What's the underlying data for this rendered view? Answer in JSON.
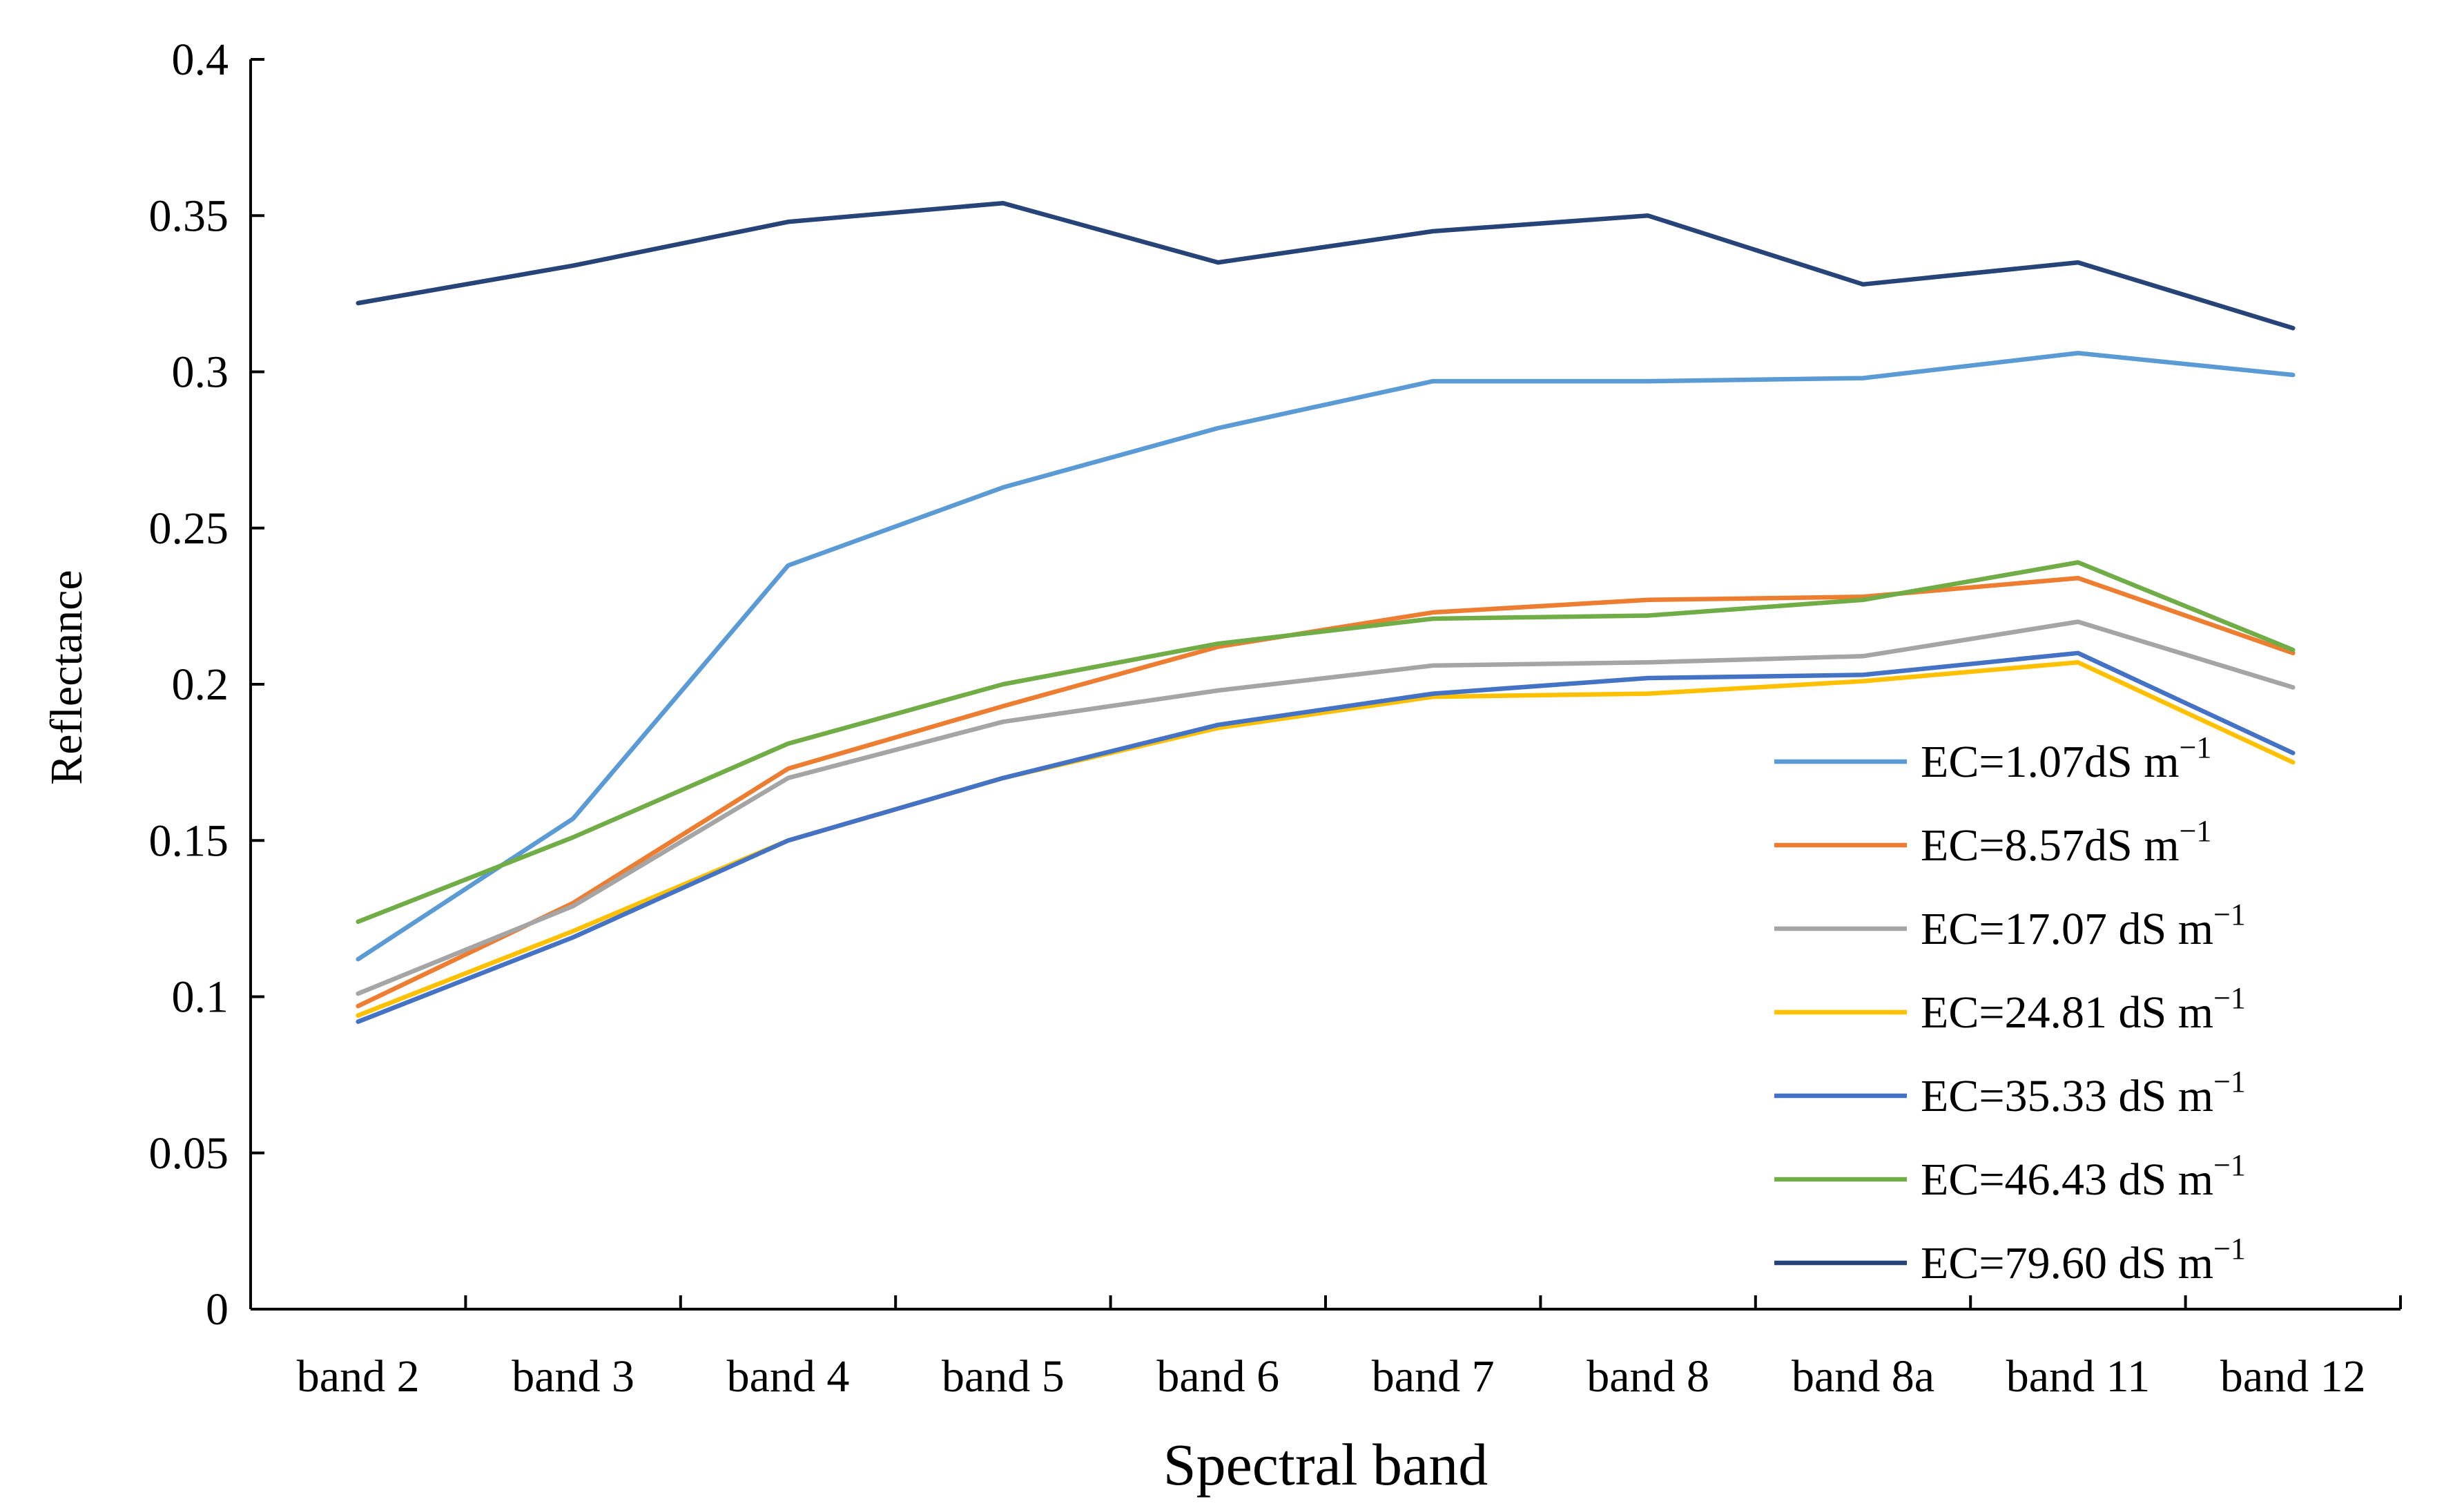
{
  "chart_data": {
    "type": "line",
    "title": "",
    "xlabel": "Spectral band",
    "ylabel": "Reflectance",
    "ylim": [
      0,
      0.4
    ],
    "yticks": [
      0,
      0.05,
      0.1,
      0.15,
      0.2,
      0.25,
      0.3,
      0.35,
      0.4
    ],
    "ytick_labels": [
      "0",
      "0.05",
      "0.1",
      "0.15",
      "0.2",
      "0.25",
      "0.3",
      "0.35",
      "0.4"
    ],
    "grid": false,
    "legend_position": "bottom-right",
    "categories": [
      "band 2",
      "band 3",
      "band 4",
      "band 5",
      "band 6",
      "band 7",
      "band 8",
      "band 8a",
      "band 11",
      "band 12"
    ],
    "series": [
      {
        "name": "EC=1.07dS m",
        "unit_sup": "−1",
        "color": "#5b9bd5",
        "values": [
          0.112,
          0.157,
          0.238,
          0.263,
          0.282,
          0.297,
          0.297,
          0.298,
          0.306,
          0.299
        ]
      },
      {
        "name": "EC=8.57dS m",
        "unit_sup": "−1",
        "color": "#ed7d31",
        "values": [
          0.097,
          0.13,
          0.173,
          0.193,
          0.212,
          0.223,
          0.227,
          0.228,
          0.234,
          0.21
        ]
      },
      {
        "name": "EC=17.07 dS m",
        "unit_sup": "−1",
        "color": "#a5a5a5",
        "values": [
          0.101,
          0.129,
          0.17,
          0.188,
          0.198,
          0.206,
          0.207,
          0.209,
          0.22,
          0.199
        ]
      },
      {
        "name": "EC=24.81 dS m",
        "unit_sup": "−1",
        "color": "#ffc000",
        "values": [
          0.094,
          0.121,
          0.15,
          0.17,
          0.186,
          0.196,
          0.197,
          0.201,
          0.207,
          0.175
        ]
      },
      {
        "name": "EC=35.33 dS m",
        "unit_sup": "−1",
        "color": "#4472c4",
        "values": [
          0.092,
          0.119,
          0.15,
          0.17,
          0.187,
          0.197,
          0.202,
          0.203,
          0.21,
          0.178
        ]
      },
      {
        "name": "EC=46.43 dS m",
        "unit_sup": "−1",
        "color": "#70ad47",
        "values": [
          0.124,
          0.151,
          0.181,
          0.2,
          0.213,
          0.221,
          0.222,
          0.227,
          0.239,
          0.211
        ]
      },
      {
        "name": "EC=79.60 dS m",
        "unit_sup": "−1",
        "color": "#264478",
        "values": [
          0.322,
          0.334,
          0.348,
          0.354,
          0.335,
          0.345,
          0.35,
          0.328,
          0.335,
          0.314
        ]
      }
    ]
  }
}
